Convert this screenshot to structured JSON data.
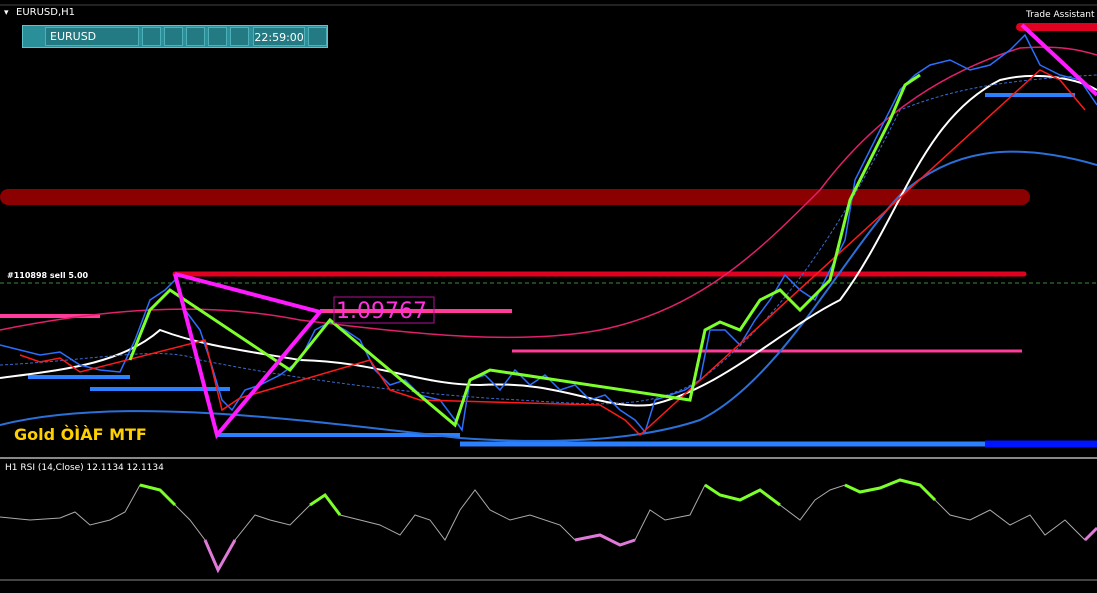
{
  "window": {
    "symbol_title": "EURUSD,H1",
    "trade_assistant": "Trade Assistant M"
  },
  "toolbar": {
    "symbol": "EURUSD",
    "time": "22:59:00"
  },
  "chart": {
    "order_label": "#110898 sell 5.00",
    "price_label": "1.09767",
    "indicator_label": "Gold ÒÌÀF MTF"
  },
  "rsi_panel": {
    "label": "H1 RSI (14,Close) 12.1134 12.1134"
  }
}
